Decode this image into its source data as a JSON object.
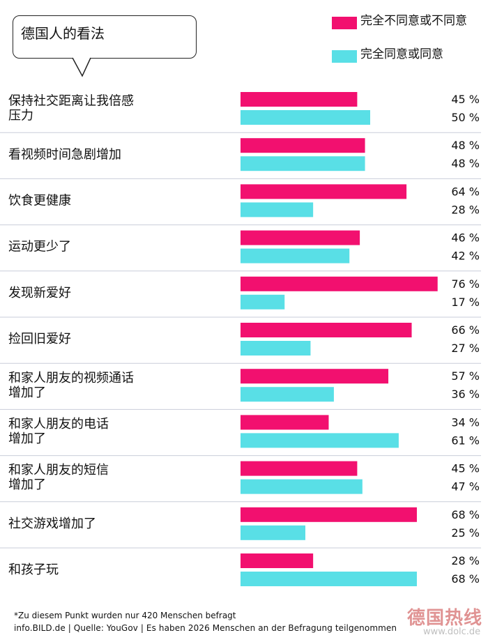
{
  "header": {
    "title": "德国人的看法"
  },
  "colors": {
    "disagree": "#f2106f",
    "agree": "#59dfe6",
    "divider": "#c9cdd9"
  },
  "legend": {
    "disagree_label": "完全不同意或不同意",
    "agree_label": "完全同意或同意"
  },
  "chart_data": {
    "type": "bar",
    "orientation": "horizontal",
    "value_suffix": " %",
    "categories": [
      [
        "保持社交距离让我倍感",
        "压力"
      ],
      [
        "看视频时间急剧增加"
      ],
      [
        "饮食更健康"
      ],
      [
        "运动更少了"
      ],
      [
        "发现新爱好"
      ],
      [
        "捡回旧爱好"
      ],
      [
        "和家人朋友的视频通话",
        "增加了"
      ],
      [
        "和家人朋友的电话",
        "增加了"
      ],
      [
        "和家人朋友的短信",
        "增加了"
      ],
      [
        "社交游戏增加了"
      ],
      [
        "和孩子玩"
      ]
    ],
    "series": [
      {
        "name": "完全不同意或不同意",
        "values": [
          45,
          48,
          64,
          46,
          76,
          66,
          57,
          34,
          45,
          68,
          28
        ]
      },
      {
        "name": "完全同意或同意",
        "values": [
          50,
          48,
          28,
          42,
          17,
          27,
          36,
          61,
          47,
          25,
          68
        ]
      }
    ],
    "xlim": [
      0,
      80
    ]
  },
  "footer": {
    "note": "*Zu diesem Punkt wurden nur 420 Menschen befragt",
    "source": "info.BILD.de | Quelle: YouGov | Es haben 2026 Menschen an der Befragung teilgenommen"
  },
  "watermark": {
    "text": "德国热线",
    "url": "www.dolc.de"
  }
}
